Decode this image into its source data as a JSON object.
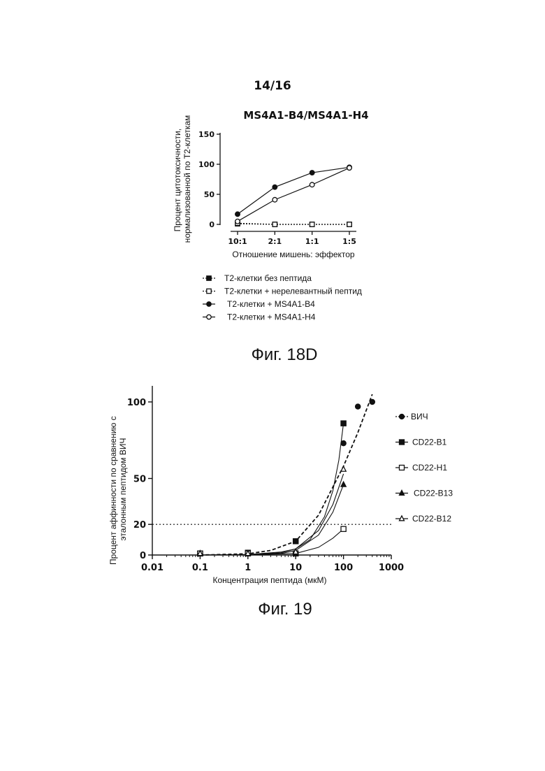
{
  "page": {
    "number": "14/16"
  },
  "figure_captions": [
    "Фиг. 18D",
    "Фиг. 19"
  ],
  "chart_data": [
    {
      "type": "line",
      "title": "MS4A1-B4/MS4A1-H4",
      "ylabel": "Процент цитотоксичности, нормализованной по T2-клеткам",
      "xlabel": "Отношение мишень: эффектор",
      "categories": [
        "10:1",
        "2:1",
        "1:1",
        "1:5"
      ],
      "yticks": [
        "0",
        "50",
        "100",
        "150"
      ],
      "ylim": [
        0,
        150
      ],
      "legend_position": "bottom",
      "series": [
        {
          "name": "T2-клетки без пептида",
          "values": [
            1,
            0,
            0,
            0
          ],
          "marker": "square-filled",
          "line": "dotted"
        },
        {
          "name": "T2-клетки + нерелевантный пептид",
          "values": [
            2,
            0,
            0,
            0
          ],
          "marker": "square-open",
          "line": "dotted"
        },
        {
          "name": "T2-клетки + MS4A1-B4",
          "values": [
            17,
            62,
            86,
            95
          ],
          "marker": "circle-filled",
          "line": "solid"
        },
        {
          "name": "T2-клетки + MS4A1-H4",
          "values": [
            5,
            41,
            66,
            94
          ],
          "marker": "circle-open",
          "line": "solid"
        }
      ]
    },
    {
      "type": "scatter",
      "xscale": "log",
      "ylabel": "Процент аффинности по сравнению с эталонным пептидом ВИЧ",
      "xlabel": "Концентрация пептида (мкМ)",
      "xticks": [
        "0.01",
        "0.1",
        "1",
        "10",
        "100",
        "1000"
      ],
      "yticks": [
        "0",
        "20",
        "50",
        "100"
      ],
      "xlim": [
        0.01,
        1000
      ],
      "ylim": [
        0,
        110
      ],
      "threshold_line": 20,
      "legend_position": "right",
      "series": [
        {
          "name": "ВИЧ",
          "marker": "circle-filled",
          "fit": "dashed",
          "points": [
            [
              0.1,
              1
            ],
            [
              1,
              1
            ],
            [
              10,
              1.5
            ],
            [
              100,
              73
            ],
            [
              200,
              97
            ],
            [
              400,
              100
            ]
          ],
          "curve": [
            [
              0.1,
              0
            ],
            [
              1,
              0.8
            ],
            [
              3,
              3
            ],
            [
              10,
              9
            ],
            [
              30,
              26
            ],
            [
              100,
              58
            ],
            [
              200,
              80
            ],
            [
              400,
              105
            ]
          ]
        },
        {
          "name": "CD22-B1",
          "marker": "square-filled",
          "fit": "solid",
          "points": [
            [
              0.1,
              1
            ],
            [
              1,
              1.5
            ],
            [
              10,
              9
            ],
            [
              100,
              86
            ]
          ],
          "curve": [
            [
              0.1,
              0
            ],
            [
              1,
              0.3
            ],
            [
              5,
              2
            ],
            [
              10,
              4
            ],
            [
              20,
              10
            ],
            [
              40,
              25
            ],
            [
              60,
              42
            ],
            [
              80,
              62
            ],
            [
              100,
              86
            ]
          ]
        },
        {
          "name": "CD22-H1",
          "marker": "square-open",
          "fit": "solid",
          "points": [
            [
              0.1,
              1
            ],
            [
              1,
              1
            ],
            [
              10,
              1
            ],
            [
              100,
              17
            ]
          ],
          "curve": [
            [
              0.1,
              0
            ],
            [
              1,
              0.1
            ],
            [
              10,
              1
            ],
            [
              30,
              5
            ],
            [
              60,
              11
            ],
            [
              100,
              17
            ]
          ]
        },
        {
          "name": "CD22-B13",
          "marker": "triangle-filled",
          "fit": "solid",
          "points": [
            [
              0.1,
              1
            ],
            [
              1,
              1
            ],
            [
              10,
              1
            ],
            [
              100,
              46
            ]
          ],
          "curve": [
            [
              0.1,
              0
            ],
            [
              1,
              0.2
            ],
            [
              5,
              1
            ],
            [
              10,
              3
            ],
            [
              30,
              13
            ],
            [
              60,
              28
            ],
            [
              100,
              46
            ]
          ]
        },
        {
          "name": "CD22-B12",
          "marker": "triangle-open",
          "fit": "solid",
          "points": [
            [
              0.1,
              1
            ],
            [
              1,
              1
            ],
            [
              10,
              2
            ],
            [
              100,
              56
            ]
          ],
          "curve": [
            [
              0.1,
              0
            ],
            [
              1,
              0.3
            ],
            [
              5,
              1.5
            ],
            [
              10,
              4
            ],
            [
              30,
              16
            ],
            [
              60,
              33
            ],
            [
              100,
              53
            ]
          ]
        }
      ]
    }
  ]
}
